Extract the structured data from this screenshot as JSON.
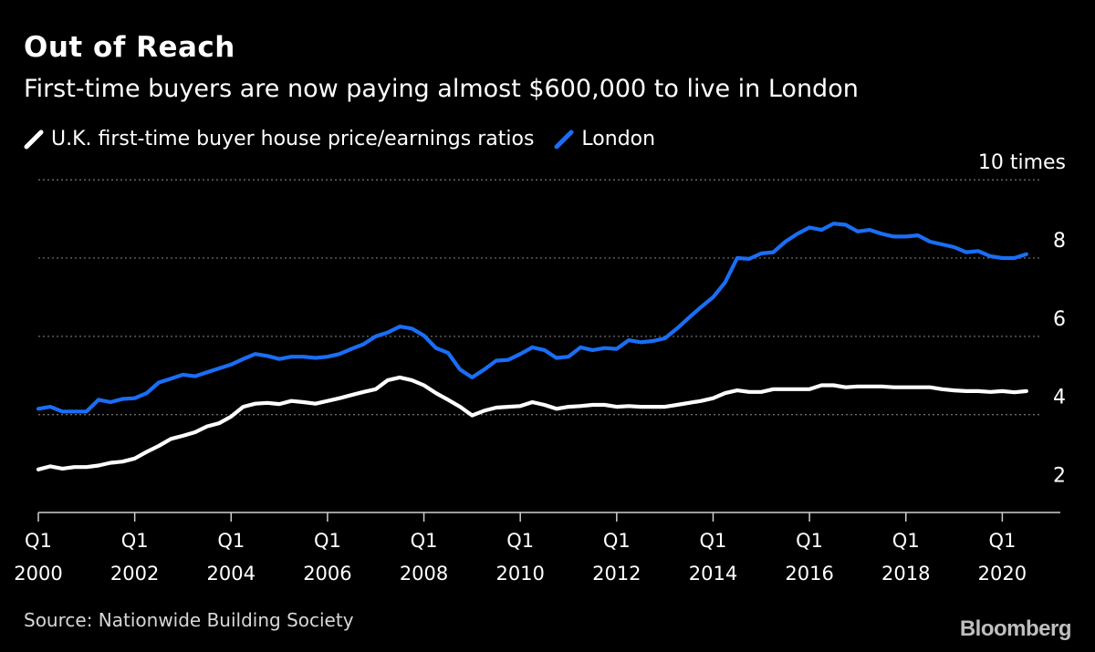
{
  "title": "Out of Reach",
  "subtitle": "First-time buyers are now paying almost $600,000 to live in London",
  "source": "Source: Nationwide Building Society",
  "brand": "Bloomberg",
  "colors": {
    "background": "#000000",
    "uk": "#ffffff",
    "london": "#1a6ef5",
    "grid": "#6b6b6b"
  },
  "chart_data": {
    "type": "line",
    "title": "Out of Reach",
    "subtitle": "First-time buyers are now paying almost $600,000 to live in London",
    "legend_position": "top-left",
    "grid": true,
    "ylim": [
      1.5,
      10.4
    ],
    "yticks": [
      {
        "value": 2,
        "label": "2"
      },
      {
        "value": 4,
        "label": "4"
      },
      {
        "value": 6,
        "label": "6"
      },
      {
        "value": 8,
        "label": "8"
      },
      {
        "value": 10,
        "label": "10 times"
      }
    ],
    "xlim": [
      2000.0,
      2020.75
    ],
    "xticks": [
      {
        "value": 2000,
        "q": "Q1",
        "year": "2000"
      },
      {
        "value": 2002,
        "q": "Q1",
        "year": "2002"
      },
      {
        "value": 2004,
        "q": "Q1",
        "year": "2004"
      },
      {
        "value": 2006,
        "q": "Q1",
        "year": "2006"
      },
      {
        "value": 2008,
        "q": "Q1",
        "year": "2008"
      },
      {
        "value": 2010,
        "q": "Q1",
        "year": "2010"
      },
      {
        "value": 2012,
        "q": "Q1",
        "year": "2012"
      },
      {
        "value": 2014,
        "q": "Q1",
        "year": "2014"
      },
      {
        "value": 2016,
        "q": "Q1",
        "year": "2016"
      },
      {
        "value": 2018,
        "q": "Q1",
        "year": "2018"
      },
      {
        "value": 2020,
        "q": "Q1",
        "year": "2020"
      }
    ],
    "x": [
      "2000 Q1",
      "2000 Q2",
      "2000 Q3",
      "2000 Q4",
      "2001 Q1",
      "2001 Q2",
      "2001 Q3",
      "2001 Q4",
      "2002 Q1",
      "2002 Q2",
      "2002 Q3",
      "2002 Q4",
      "2003 Q1",
      "2003 Q2",
      "2003 Q3",
      "2003 Q4",
      "2004 Q1",
      "2004 Q2",
      "2004 Q3",
      "2004 Q4",
      "2005 Q1",
      "2005 Q2",
      "2005 Q3",
      "2005 Q4",
      "2006 Q1",
      "2006 Q2",
      "2006 Q3",
      "2006 Q4",
      "2007 Q1",
      "2007 Q2",
      "2007 Q3",
      "2007 Q4",
      "2008 Q1",
      "2008 Q2",
      "2008 Q3",
      "2008 Q4",
      "2009 Q1",
      "2009 Q2",
      "2009 Q3",
      "2009 Q4",
      "2010 Q1",
      "2010 Q2",
      "2010 Q3",
      "2010 Q4",
      "2011 Q1",
      "2011 Q2",
      "2011 Q3",
      "2011 Q4",
      "2012 Q1",
      "2012 Q2",
      "2012 Q3",
      "2012 Q4",
      "2013 Q1",
      "2013 Q2",
      "2013 Q3",
      "2013 Q4",
      "2014 Q1",
      "2014 Q2",
      "2014 Q3",
      "2014 Q4",
      "2015 Q1",
      "2015 Q2",
      "2015 Q3",
      "2015 Q4",
      "2016 Q1",
      "2016 Q2",
      "2016 Q3",
      "2016 Q4",
      "2017 Q1",
      "2017 Q2",
      "2017 Q3",
      "2017 Q4",
      "2018 Q1",
      "2018 Q2",
      "2018 Q3",
      "2018 Q4",
      "2019 Q1",
      "2019 Q2",
      "2019 Q3",
      "2019 Q4",
      "2020 Q1",
      "2020 Q2",
      "2020 Q3"
    ],
    "series": [
      {
        "name": "U.K. first-time buyer house price/earnings ratios",
        "color": "#ffffff",
        "values": [
          2.6,
          2.68,
          2.62,
          2.66,
          2.66,
          2.7,
          2.77,
          2.8,
          2.88,
          3.05,
          3.2,
          3.38,
          3.46,
          3.55,
          3.7,
          3.78,
          3.95,
          4.2,
          4.28,
          4.3,
          4.27,
          4.35,
          4.32,
          4.28,
          4.35,
          4.42,
          4.5,
          4.58,
          4.65,
          4.88,
          4.95,
          4.88,
          4.75,
          4.55,
          4.38,
          4.2,
          3.98,
          4.1,
          4.18,
          4.2,
          4.22,
          4.32,
          4.25,
          4.15,
          4.2,
          4.22,
          4.25,
          4.25,
          4.2,
          4.22,
          4.2,
          4.2,
          4.2,
          4.25,
          4.3,
          4.35,
          4.42,
          4.55,
          4.62,
          4.58,
          4.58,
          4.65,
          4.65,
          4.65,
          4.65,
          4.75,
          4.75,
          4.7,
          4.72,
          4.72,
          4.72,
          4.7,
          4.7,
          4.7,
          4.7,
          4.65,
          4.62,
          4.6,
          4.6,
          4.58,
          4.6,
          4.57,
          4.6
        ]
      },
      {
        "name": "London",
        "color": "#1a6ef5",
        "values": [
          4.15,
          4.2,
          4.08,
          4.08,
          4.08,
          4.38,
          4.32,
          4.4,
          4.42,
          4.55,
          4.82,
          4.92,
          5.02,
          4.98,
          5.08,
          5.18,
          5.28,
          5.42,
          5.55,
          5.5,
          5.42,
          5.48,
          5.48,
          5.45,
          5.48,
          5.55,
          5.68,
          5.8,
          6.0,
          6.1,
          6.25,
          6.2,
          6.02,
          5.7,
          5.58,
          5.15,
          4.95,
          5.15,
          5.38,
          5.4,
          5.55,
          5.72,
          5.65,
          5.45,
          5.48,
          5.72,
          5.65,
          5.7,
          5.68,
          5.9,
          5.85,
          5.88,
          5.95,
          6.2,
          6.48,
          6.75,
          7.0,
          7.38,
          8.0,
          7.98,
          8.12,
          8.15,
          8.42,
          8.62,
          8.78,
          8.72,
          8.88,
          8.85,
          8.68,
          8.72,
          8.62,
          8.55,
          8.55,
          8.58,
          8.42,
          8.35,
          8.28,
          8.15,
          8.18,
          8.05,
          8.0,
          8.0,
          8.1
        ]
      }
    ]
  }
}
